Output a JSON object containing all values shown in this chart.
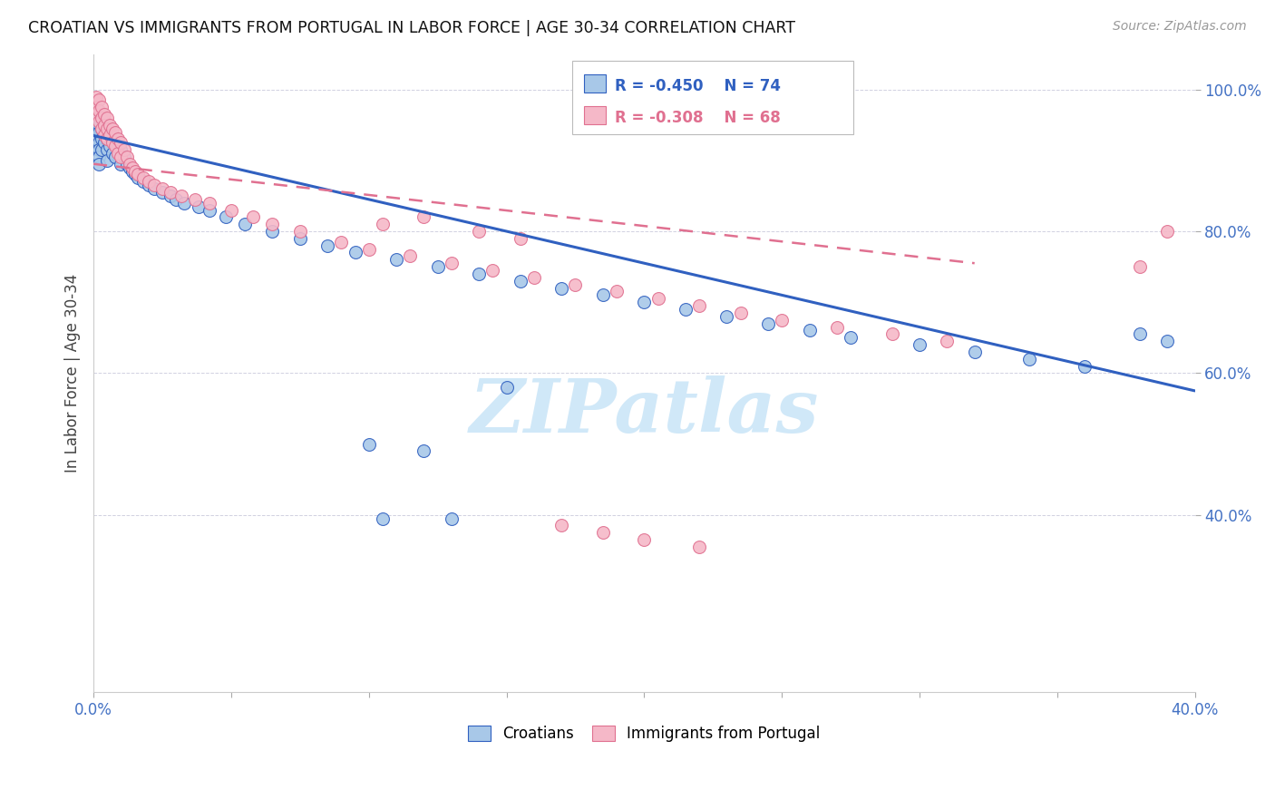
{
  "title": "CROATIAN VS IMMIGRANTS FROM PORTUGAL IN LABOR FORCE | AGE 30-34 CORRELATION CHART",
  "source": "Source: ZipAtlas.com",
  "ylabel": "In Labor Force | Age 30-34",
  "legend_croatians": "Croatians",
  "legend_immigrants": "Immigrants from Portugal",
  "R_croatians": -0.45,
  "N_croatians": 74,
  "R_immigrants": -0.308,
  "N_immigrants": 68,
  "color_croatians": "#a8c8e8",
  "color_immigrants": "#f5b8c8",
  "color_line_croatians": "#3060c0",
  "color_line_immigrants": "#e07090",
  "xlim": [
    0.0,
    0.4
  ],
  "ylim": [
    0.15,
    1.05
  ],
  "watermark": "ZIPatlas",
  "watermark_color": "#d0e8f8",
  "blue_line_x0": 0.0,
  "blue_line_y0": 0.935,
  "blue_line_x1": 0.4,
  "blue_line_y1": 0.575,
  "pink_line_x0": 0.0,
  "pink_line_y0": 0.895,
  "pink_line_x1": 0.32,
  "pink_line_y1": 0.755,
  "blue_x": [
    0.001,
    0.001,
    0.001,
    0.001,
    0.002,
    0.002,
    0.002,
    0.002,
    0.002,
    0.002,
    0.003,
    0.003,
    0.003,
    0.003,
    0.004,
    0.004,
    0.004,
    0.005,
    0.005,
    0.005,
    0.005,
    0.006,
    0.006,
    0.007,
    0.007,
    0.008,
    0.008,
    0.009,
    0.01,
    0.01,
    0.011,
    0.012,
    0.013,
    0.014,
    0.015,
    0.016,
    0.018,
    0.02,
    0.022,
    0.025,
    0.028,
    0.03,
    0.033,
    0.038,
    0.042,
    0.048,
    0.055,
    0.065,
    0.075,
    0.085,
    0.095,
    0.11,
    0.125,
    0.14,
    0.155,
    0.17,
    0.185,
    0.2,
    0.215,
    0.23,
    0.245,
    0.26,
    0.275,
    0.3,
    0.32,
    0.34,
    0.36,
    0.38,
    0.39,
    0.1,
    0.12,
    0.105,
    0.13,
    0.15
  ],
  "blue_y": [
    0.945,
    0.93,
    0.92,
    0.96,
    0.95,
    0.94,
    0.925,
    0.915,
    0.905,
    0.895,
    0.96,
    0.945,
    0.93,
    0.915,
    0.955,
    0.94,
    0.925,
    0.95,
    0.93,
    0.915,
    0.9,
    0.94,
    0.92,
    0.935,
    0.91,
    0.93,
    0.905,
    0.92,
    0.915,
    0.895,
    0.905,
    0.895,
    0.89,
    0.885,
    0.88,
    0.875,
    0.87,
    0.865,
    0.86,
    0.855,
    0.85,
    0.845,
    0.84,
    0.835,
    0.83,
    0.82,
    0.81,
    0.8,
    0.79,
    0.78,
    0.77,
    0.76,
    0.75,
    0.74,
    0.73,
    0.72,
    0.71,
    0.7,
    0.69,
    0.68,
    0.67,
    0.66,
    0.65,
    0.64,
    0.63,
    0.62,
    0.61,
    0.655,
    0.645,
    0.5,
    0.49,
    0.395,
    0.395,
    0.58
  ],
  "pink_x": [
    0.001,
    0.001,
    0.001,
    0.002,
    0.002,
    0.002,
    0.003,
    0.003,
    0.003,
    0.004,
    0.004,
    0.004,
    0.005,
    0.005,
    0.005,
    0.006,
    0.006,
    0.007,
    0.007,
    0.008,
    0.008,
    0.009,
    0.009,
    0.01,
    0.01,
    0.011,
    0.012,
    0.013,
    0.014,
    0.015,
    0.016,
    0.018,
    0.02,
    0.022,
    0.025,
    0.028,
    0.032,
    0.037,
    0.042,
    0.05,
    0.058,
    0.065,
    0.075,
    0.09,
    0.1,
    0.115,
    0.13,
    0.145,
    0.16,
    0.175,
    0.19,
    0.205,
    0.22,
    0.235,
    0.25,
    0.27,
    0.29,
    0.31,
    0.12,
    0.105,
    0.14,
    0.155,
    0.17,
    0.185,
    0.2,
    0.22,
    0.38,
    0.39
  ],
  "pink_y": [
    0.99,
    0.975,
    0.965,
    0.985,
    0.97,
    0.955,
    0.975,
    0.96,
    0.945,
    0.965,
    0.95,
    0.935,
    0.96,
    0.945,
    0.93,
    0.95,
    0.935,
    0.945,
    0.925,
    0.94,
    0.92,
    0.93,
    0.91,
    0.925,
    0.905,
    0.915,
    0.905,
    0.895,
    0.89,
    0.885,
    0.88,
    0.875,
    0.87,
    0.865,
    0.86,
    0.855,
    0.85,
    0.845,
    0.84,
    0.83,
    0.82,
    0.81,
    0.8,
    0.785,
    0.775,
    0.765,
    0.755,
    0.745,
    0.735,
    0.725,
    0.715,
    0.705,
    0.695,
    0.685,
    0.675,
    0.665,
    0.655,
    0.645,
    0.82,
    0.81,
    0.8,
    0.79,
    0.385,
    0.375,
    0.365,
    0.355,
    0.75,
    0.8
  ]
}
